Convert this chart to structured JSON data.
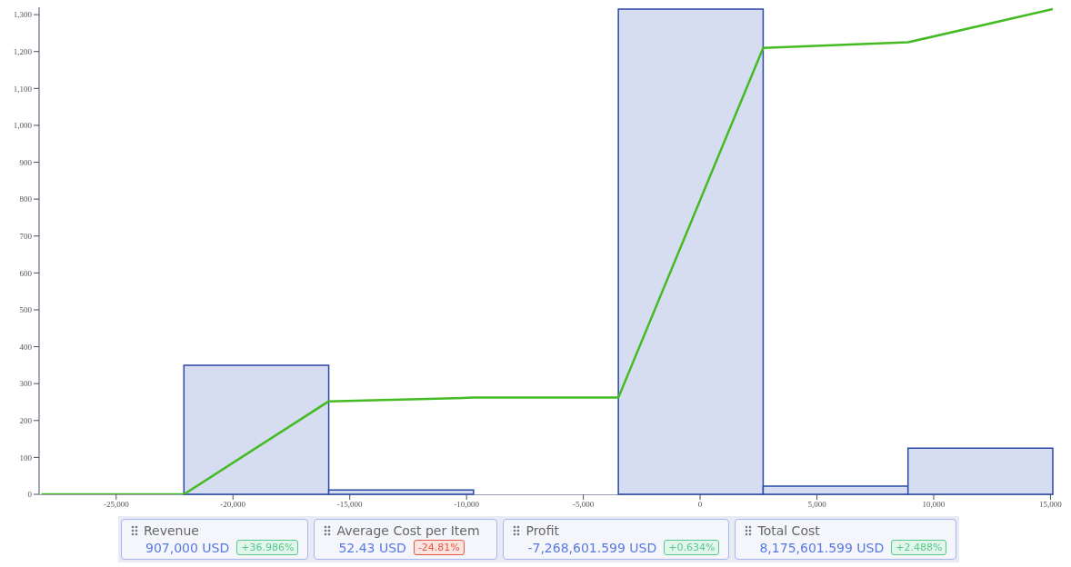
{
  "chart_data": [
    {
      "type": "histogram",
      "bins": [
        -28300,
        -22100,
        -15900,
        -9700,
        -3500,
        2700,
        8900,
        15100
      ],
      "values": [
        0,
        350,
        12,
        0,
        1315,
        22,
        125
      ],
      "color": "#d6ddf0",
      "series": [
        {
          "type": "line",
          "color": "#44bb22",
          "x": [
            -28200,
            -22100,
            -15900,
            -9700,
            -3500,
            2700,
            8900,
            15100
          ],
          "values": [
            0,
            0,
            252,
            262,
            262,
            1210,
            1225,
            1315
          ]
        }
      ],
      "xlim": [
        -28300,
        15100
      ],
      "xticks": [
        {
          "value": -25000,
          "label": "-25,000"
        },
        {
          "value": -20000,
          "label": "-20,000"
        },
        {
          "value": -15000,
          "label": "-15,000"
        },
        {
          "value": -10000,
          "label": "-10,000"
        },
        {
          "value": -5000,
          "label": "-5,000"
        },
        0,
        {
          "value": 5000,
          "label": "5,000"
        },
        {
          "value": 10000,
          "label": "10,000"
        },
        {
          "value": 15000,
          "label": "15,000"
        }
      ],
      "ylim": [
        0,
        1320
      ],
      "yticks": [
        0,
        100,
        200,
        300,
        400,
        500,
        600,
        700,
        800,
        900,
        {
          "value": 1000,
          "label": "1,000"
        },
        {
          "value": 1100,
          "label": "1,100"
        },
        {
          "value": 1200,
          "label": "1,200"
        },
        {
          "value": 1300,
          "label": "1,300"
        }
      ],
      "grid": false
    },
    {
      "type": "other",
      "categories": [
        "Revenue",
        "Average Cost per Item",
        "Profit",
        "Total Cost"
      ],
      "value_labels": [
        "907,000 USD",
        "52.43 USD",
        "-7,268,601.599 USD",
        "8,175,601.599 USD"
      ]
    },
    {
      "type": "other",
      "categories": [
        "+36.986%",
        "-24.81%",
        "+0.634%",
        "+2.488%"
      ],
      "colors": [
        "#e3f6ec",
        "#fbe3e0",
        "#e3f6ec",
        "#e3f6ec"
      ]
    }
  ]
}
